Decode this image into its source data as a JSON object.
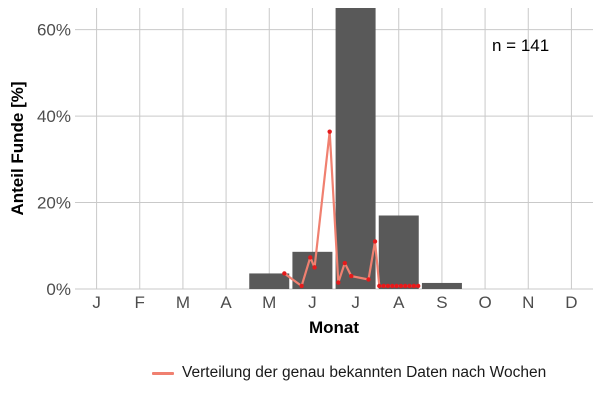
{
  "chart_data": {
    "type": "bar",
    "xlabel": "Monat",
    "ylabel": "Anteil Funde [%]",
    "annotation": "n = 141",
    "categories": [
      "J",
      "F",
      "M",
      "A",
      "M",
      "J",
      "J",
      "A",
      "S",
      "O",
      "N",
      "D"
    ],
    "ylim": [
      0,
      65
    ],
    "yticks": [
      0,
      20,
      40,
      60
    ],
    "ytick_labels": [
      "0%",
      "20%",
      "40%",
      "60%"
    ],
    "grid": true,
    "legend_position": "bottom",
    "bars": {
      "values": [
        0,
        0,
        0,
        0,
        3.6,
        8.6,
        65,
        17,
        1.4,
        0,
        0,
        0
      ],
      "color": "#595959"
    },
    "series": [
      {
        "name": "Verteilung der genau bekannten Daten nach Wochen",
        "color": "#f08070",
        "point_color": "#e41a1c",
        "x": [
          5.35,
          5.75,
          5.95,
          6.05,
          6.4,
          6.6,
          6.75,
          6.9,
          7.3,
          7.45,
          7.55,
          7.65,
          7.75,
          7.85,
          7.95,
          8.05,
          8.15,
          8.25,
          8.35,
          8.45
        ],
        "values": [
          3.6,
          0.7,
          7.3,
          5.0,
          36.4,
          1.5,
          6.0,
          3.0,
          2.2,
          11.0,
          0.7,
          0.7,
          0.7,
          0.7,
          0.7,
          0.7,
          0.7,
          0.7,
          0.7,
          0.7
        ]
      }
    ]
  }
}
